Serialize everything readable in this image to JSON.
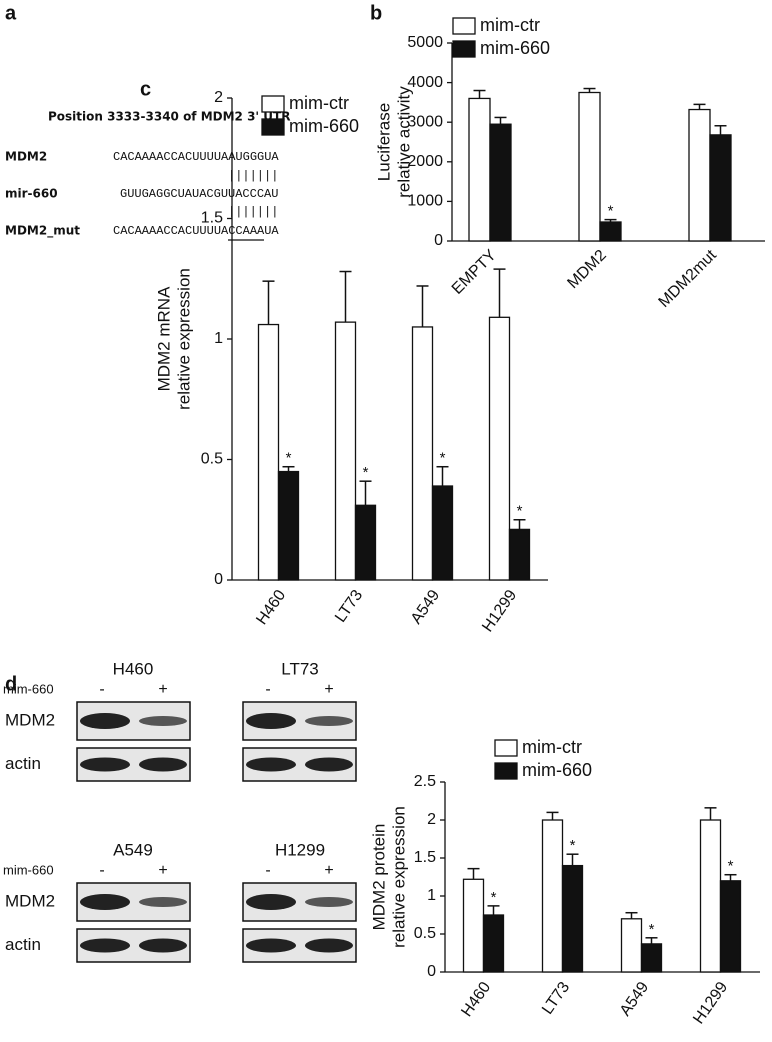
{
  "sequence_panel": {
    "panel": "a",
    "title": "Position 3333-3340 of MDM2 3' UTR",
    "rows": [
      {
        "name": "MDM2",
        "sequence": "CACAAAACCACUUUUAAUGGGUA"
      },
      {
        "name": "mir-660",
        "sequence": "GUUGAGGCUAUACGUUACCCAU"
      },
      {
        "name": "MDM2_mut",
        "sequence": "CACAAAACCACUUUUACCAAAUA"
      }
    ],
    "pairing": "|||||||"
  },
  "blot_panel": {
    "panel": "d",
    "treatment": "mim-660",
    "minus": "-",
    "plus": "+",
    "proteins": [
      "MDM2",
      "actin"
    ],
    "cell_lines": [
      "H460",
      "LT73",
      "A549",
      "H1299"
    ]
  },
  "chart_data": [
    {
      "type": "bar",
      "panel": "b",
      "ylabel": [
        "Luciferase",
        "relative activity"
      ],
      "categories": [
        "EMPTY",
        "MDM2",
        "MDM2mut"
      ],
      "series": [
        {
          "name": "mim-ctr",
          "color": "#ffffff",
          "values": [
            3600,
            3750,
            3320
          ],
          "errors": [
            200,
            100,
            130
          ],
          "significance": [
            null,
            null,
            null
          ]
        },
        {
          "name": "mim-660",
          "color": "#111111",
          "values": [
            2950,
            480,
            2680
          ],
          "errors": [
            170,
            60,
            230
          ],
          "significance": [
            null,
            "*",
            null
          ]
        }
      ],
      "ylim": [
        0,
        5000
      ],
      "yticks": [
        0,
        1000,
        2000,
        3000,
        4000,
        5000
      ]
    },
    {
      "type": "bar",
      "panel": "c",
      "ylabel": [
        "MDM2 mRNA",
        "relative expression"
      ],
      "categories": [
        "H460",
        "LT73",
        "A549",
        "H1299"
      ],
      "series": [
        {
          "name": "mim-ctr",
          "color": "#ffffff",
          "values": [
            1.06,
            1.07,
            1.05,
            1.09
          ],
          "errors": [
            0.18,
            0.21,
            0.17,
            0.2
          ],
          "significance": [
            null,
            null,
            null,
            null
          ]
        },
        {
          "name": "mim-660",
          "color": "#111111",
          "values": [
            0.45,
            0.31,
            0.39,
            0.21
          ],
          "errors": [
            0.02,
            0.1,
            0.08,
            0.04
          ],
          "significance": [
            "*",
            "*",
            "*",
            "*"
          ]
        }
      ],
      "ylim": [
        0,
        2
      ],
      "yticks": [
        0,
        0.5,
        1,
        1.5,
        2
      ]
    },
    {
      "type": "bar",
      "ylabel": [
        "MDM2 protein",
        "relative expression"
      ],
      "categories": [
        "H460",
        "LT73",
        "A549",
        "H1299"
      ],
      "series": [
        {
          "name": "mim-ctr",
          "color": "#ffffff",
          "values": [
            1.22,
            2.0,
            0.7,
            2.0
          ],
          "errors": [
            0.14,
            0.1,
            0.08,
            0.16
          ],
          "significance": [
            null,
            null,
            null,
            null
          ]
        },
        {
          "name": "mim-660",
          "color": "#111111",
          "values": [
            0.75,
            1.4,
            0.37,
            1.2
          ],
          "errors": [
            0.12,
            0.15,
            0.08,
            0.08
          ],
          "significance": [
            "*",
            "*",
            "*",
            "*"
          ]
        }
      ],
      "ylim": [
        0,
        2.5
      ],
      "yticks": [
        0,
        0.5,
        1,
        1.5,
        2,
        2.5
      ]
    }
  ]
}
